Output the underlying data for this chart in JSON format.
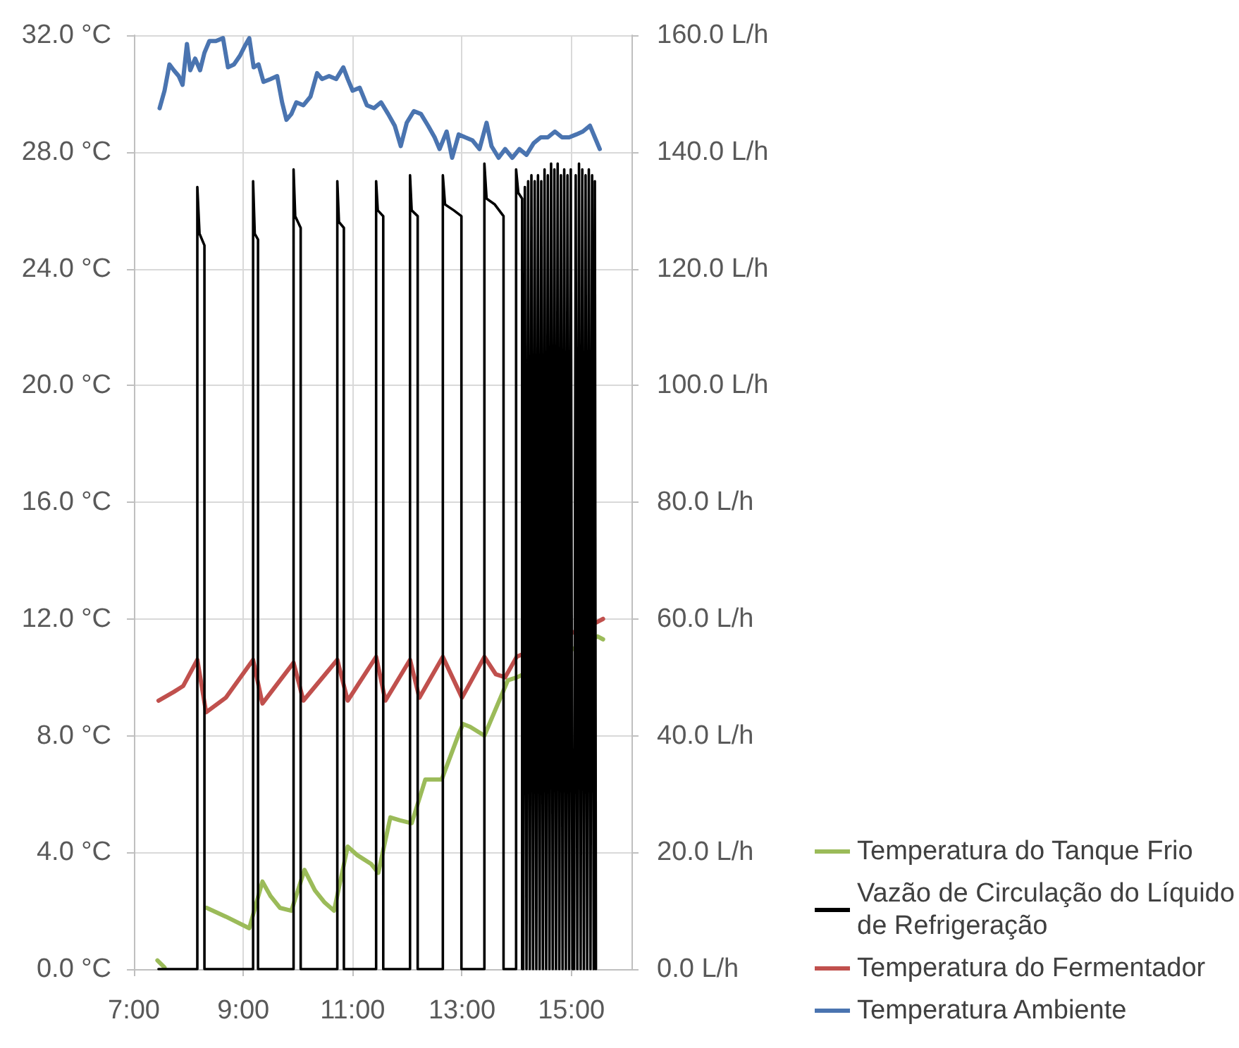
{
  "chart_data": {
    "type": "line",
    "series": [
      {
        "name": "Temperatura do Tanque Frio",
        "color": "#9bbb59",
        "x": [
          7.43,
          7.56,
          7.6,
          8.33,
          8.68,
          9.11,
          9.35,
          9.5,
          9.67,
          9.88,
          10.12,
          10.31,
          10.48,
          10.66,
          10.91,
          11.09,
          11.34,
          11.47,
          11.69,
          11.86,
          12.08,
          12.33,
          12.63,
          12.95,
          13.02,
          13.15,
          13.41,
          13.84,
          14.01,
          15.48,
          15.58
        ],
        "values": [
          0.3,
          0.06,
          null,
          2.1,
          1.8,
          1.4,
          3.0,
          2.5,
          2.1,
          2.0,
          3.4,
          2.7,
          2.3,
          2.0,
          4.2,
          3.9,
          3.6,
          3.3,
          5.2,
          5.1,
          5.0,
          6.5,
          6.5,
          8.1,
          8.4,
          8.3,
          8.0,
          9.9,
          10.0,
          11.4,
          11.3
        ]
      },
      {
        "name": "Vazão de Circulação do Líquido de Refrigeração",
        "color": "#000000",
        "axis": "y2",
        "x": [
          7.45,
          8.16,
          8.16,
          8.2,
          8.29,
          8.29,
          9.18,
          9.18,
          9.21,
          9.27,
          9.27,
          9.92,
          9.92,
          9.95,
          10.05,
          10.05,
          10.72,
          10.72,
          10.75,
          10.84,
          10.84,
          11.43,
          11.43,
          11.46,
          11.56,
          11.56,
          12.05,
          12.05,
          12.08,
          12.19,
          12.19,
          12.65,
          12.65,
          12.69,
          12.85,
          12.99,
          12.99,
          13.41,
          13.41,
          13.45,
          13.6,
          13.76,
          13.76,
          13.99,
          13.99,
          14.03,
          14.1,
          14.1,
          14.12,
          14.15,
          14.18,
          14.21,
          14.24,
          14.27,
          14.3,
          14.33,
          14.36,
          14.39,
          14.42,
          14.45,
          14.48,
          14.51,
          14.54,
          14.57,
          14.6,
          14.63,
          14.66,
          14.69,
          14.72,
          14.75,
          14.78,
          14.81,
          14.84,
          14.87,
          14.9,
          14.93,
          14.96,
          14.99,
          15.02,
          15.05,
          15.08,
          15.11,
          15.14,
          15.17,
          15.2,
          15.23,
          15.26,
          15.29,
          15.32,
          15.35,
          15.38,
          15.41,
          15.43,
          15.45
        ],
        "values": [
          0,
          0,
          134,
          126,
          124,
          0,
          0,
          135,
          126,
          125,
          0,
          0,
          137,
          129,
          127,
          0,
          0,
          135,
          128,
          127,
          0,
          0,
          135,
          130,
          129,
          0,
          0,
          136,
          130,
          129,
          0,
          0,
          136,
          131,
          130,
          129,
          0,
          0,
          138,
          132,
          131,
          129,
          0,
          0,
          137,
          133,
          132,
          0,
          0,
          134,
          0,
          135,
          0,
          136,
          0,
          135,
          0,
          136,
          0,
          135,
          0,
          137,
          0,
          136,
          0,
          138,
          0,
          137,
          0,
          138,
          0,
          136,
          0,
          137,
          0,
          136,
          0,
          137,
          0,
          0,
          136,
          0,
          138,
          0,
          137,
          0,
          136,
          0,
          137,
          0,
          136,
          0,
          135,
          0
        ]
      },
      {
        "name": "Temperatura do Fermentador",
        "color": "#c0504d",
        "x": [
          7.45,
          7.73,
          7.9,
          8.16,
          8.32,
          8.68,
          9.18,
          9.35,
          9.92,
          10.1,
          10.72,
          10.91,
          11.43,
          11.6,
          12.05,
          12.22,
          12.65,
          13.0,
          13.41,
          13.62,
          13.79,
          14.0,
          15.48,
          15.58
        ],
        "values": [
          9.2,
          9.5,
          9.7,
          10.6,
          8.8,
          9.3,
          10.6,
          9.1,
          10.5,
          9.2,
          10.6,
          9.2,
          10.7,
          9.2,
          10.6,
          9.3,
          10.7,
          9.3,
          10.7,
          10.1,
          10.0,
          10.7,
          11.9,
          12.0
        ]
      },
      {
        "name": "Temperatura Ambiente",
        "color": "#4a74b0",
        "x": [
          7.47,
          7.56,
          7.65,
          7.73,
          7.82,
          7.89,
          7.97,
          8.03,
          8.12,
          8.21,
          8.29,
          8.38,
          8.5,
          8.63,
          8.72,
          8.83,
          8.94,
          9.02,
          9.11,
          9.19,
          9.28,
          9.37,
          9.5,
          9.62,
          9.71,
          9.79,
          9.88,
          9.97,
          10.1,
          10.23,
          10.35,
          10.44,
          10.57,
          10.7,
          10.83,
          10.91,
          11.0,
          11.13,
          11.26,
          11.39,
          11.52,
          11.65,
          11.77,
          11.88,
          11.99,
          12.12,
          12.25,
          12.38,
          12.5,
          12.59,
          12.72,
          12.82,
          12.94,
          13.06,
          13.19,
          13.32,
          13.45,
          13.54,
          13.67,
          13.79,
          13.92,
          14.05,
          14.18,
          14.31,
          14.44,
          14.57,
          14.7,
          14.83,
          14.96,
          15.09,
          15.21,
          15.34,
          15.43,
          15.52
        ],
        "values": [
          29.5,
          30.1,
          31.0,
          30.8,
          30.6,
          30.3,
          31.7,
          30.8,
          31.2,
          30.8,
          31.4,
          31.8,
          31.8,
          31.9,
          30.9,
          31.0,
          31.3,
          31.6,
          31.9,
          30.9,
          31.0,
          30.4,
          30.5,
          30.6,
          29.7,
          29.1,
          29.3,
          29.7,
          29.6,
          29.9,
          30.7,
          30.5,
          30.6,
          30.5,
          30.9,
          30.5,
          30.1,
          30.2,
          29.6,
          29.5,
          29.7,
          29.3,
          28.9,
          28.2,
          29.0,
          29.4,
          29.3,
          28.9,
          28.5,
          28.1,
          28.7,
          27.8,
          28.6,
          28.5,
          28.4,
          28.1,
          29.0,
          28.2,
          27.8,
          28.1,
          27.8,
          28.1,
          27.9,
          28.3,
          28.5,
          28.5,
          28.7,
          28.5,
          28.5,
          28.6,
          28.7,
          28.9,
          28.5,
          28.1
        ]
      }
    ],
    "xlim": [
      7,
      16.1
    ],
    "xticks": [
      {
        "value": 7,
        "label": "7:00"
      },
      {
        "value": 9,
        "label": "9:00"
      },
      {
        "value": 11,
        "label": "11:00"
      },
      {
        "value": 13,
        "label": "13:00"
      },
      {
        "value": 15,
        "label": "15:00"
      }
    ],
    "ylim": [
      0,
      32
    ],
    "yticks": [
      {
        "value": 0,
        "label": "0.0 °C"
      },
      {
        "value": 4,
        "label": "4.0 °C"
      },
      {
        "value": 8,
        "label": "8.0 °C"
      },
      {
        "value": 12,
        "label": "12.0 °C"
      },
      {
        "value": 16,
        "label": "16.0 °C"
      },
      {
        "value": 20,
        "label": "20.0 °C"
      },
      {
        "value": 24,
        "label": "24.0 °C"
      },
      {
        "value": 28,
        "label": "28.0 °C"
      },
      {
        "value": 32,
        "label": "32.0 °C"
      }
    ],
    "y2lim": [
      0,
      160
    ],
    "y2ticks": [
      {
        "value": 0,
        "label": "0.0 L/h"
      },
      {
        "value": 20,
        "label": "20.0 L/h"
      },
      {
        "value": 40,
        "label": "40.0 L/h"
      },
      {
        "value": 60,
        "label": "60.0 L/h"
      },
      {
        "value": 80,
        "label": "80.0 L/h"
      },
      {
        "value": 100,
        "label": "100.0 L/h"
      },
      {
        "value": 120,
        "label": "120.0 L/h"
      },
      {
        "value": 140,
        "label": "140.0 L/h"
      },
      {
        "value": 160,
        "label": "160.0 L/h"
      }
    ],
    "grid": true,
    "legend": "bottom right"
  }
}
